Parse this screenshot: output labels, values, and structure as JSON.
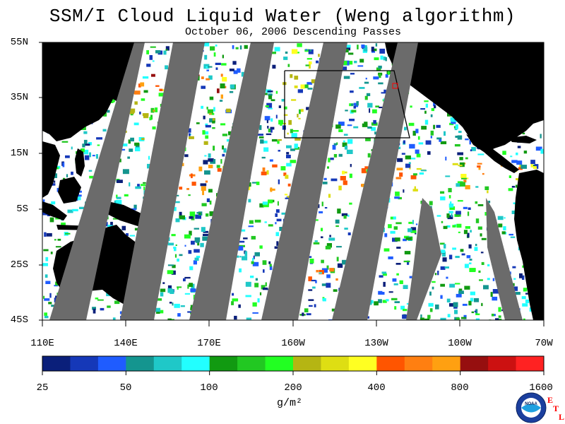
{
  "title": "SSM/I Cloud Liquid Water (Weng algorithm)",
  "subtitle": "October 06, 2006  Descending Passes",
  "lat_labels": [
    "55N",
    "35N",
    "15N",
    "5S",
    "25S",
    "45S"
  ],
  "lon_labels": [
    "110E",
    "140E",
    "170E",
    "160W",
    "130W",
    "100W",
    "70W"
  ],
  "colorbar": {
    "labels": [
      "25",
      "50",
      "100",
      "200",
      "400",
      "800",
      "1600"
    ],
    "colors": [
      "#0a1f7a",
      "#1538b8",
      "#1f5cff",
      "#14958f",
      "#1fc8c8",
      "#22ffff",
      "#119a11",
      "#22c822",
      "#22ff22",
      "#b5b513",
      "#dede13",
      "#ffff22",
      "#ff5500",
      "#ff7f11",
      "#ffa011",
      "#960f0f",
      "#cc1111",
      "#ff2222"
    ],
    "units": "g/m²"
  },
  "colors": {
    "land": "#000000",
    "missing_swath": "#6b6b6b",
    "clear_sky": "#ffffff"
  },
  "logo": {
    "noaa_text": "NOAA",
    "etl_letters": [
      "E",
      "T",
      "L"
    ]
  }
}
